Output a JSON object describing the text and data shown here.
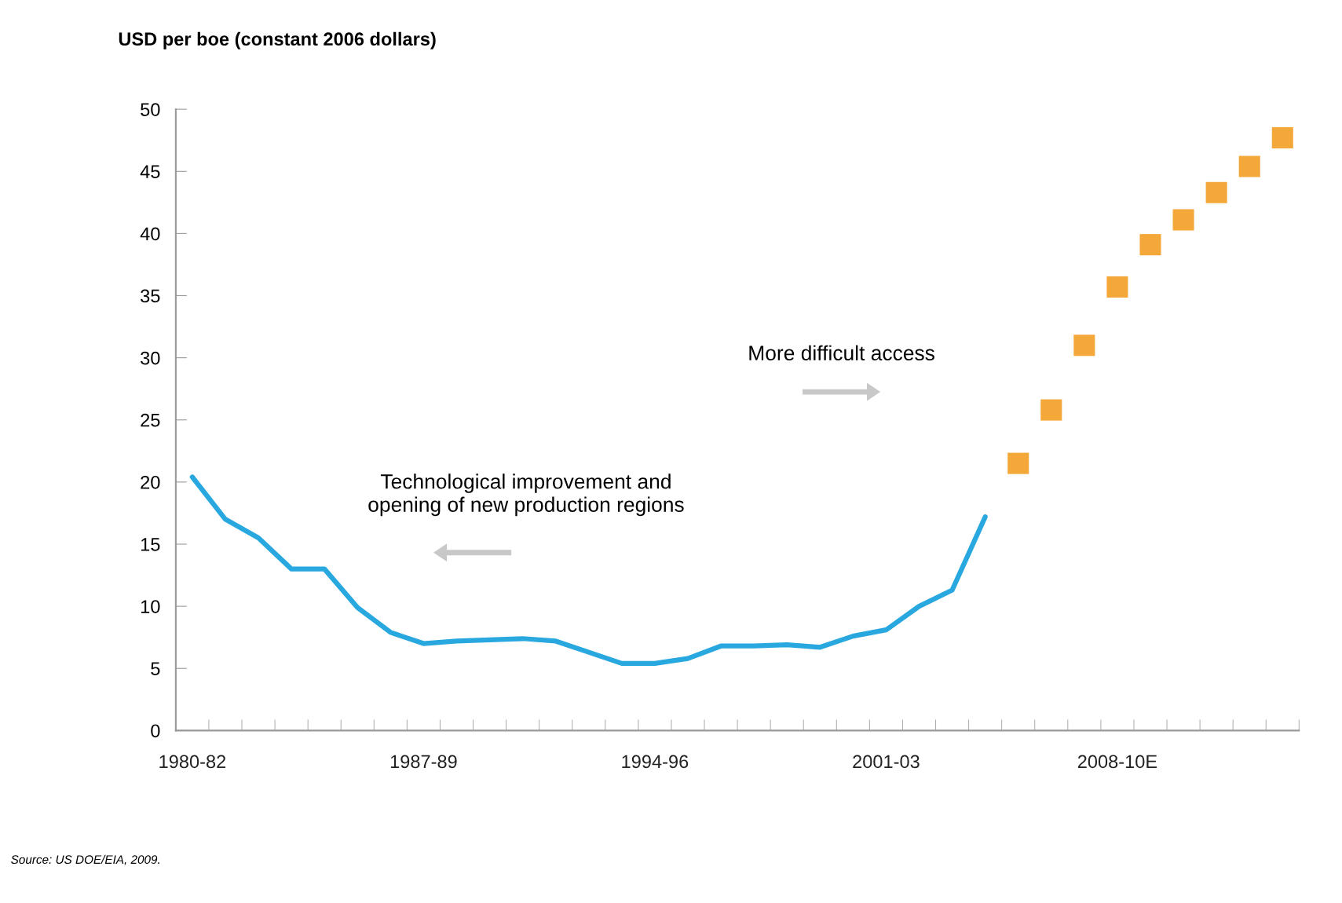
{
  "chart_data": {
    "type": "line",
    "ylabel": "USD per boe (constant 2006 dollars)",
    "categories": [
      "1980-82",
      null,
      null,
      null,
      null,
      null,
      null,
      "1987-89",
      null,
      null,
      null,
      null,
      null,
      null,
      "1994-96",
      null,
      null,
      null,
      null,
      null,
      null,
      "2001-03",
      null,
      null,
      null,
      null,
      null,
      null,
      "2008-10E",
      null,
      null,
      null,
      null,
      null
    ],
    "series": [
      {
        "color": "#29a8e0",
        "marker": "none",
        "values": [
          20.4,
          17.0,
          15.5,
          13.0,
          13.0,
          9.9,
          7.9,
          7.0,
          7.2,
          7.3,
          7.4,
          7.2,
          6.3,
          5.4,
          5.4,
          5.8,
          6.8,
          6.8,
          6.9,
          6.7,
          7.6,
          8.1,
          10.0,
          11.3,
          17.2,
          null,
          null,
          null,
          null,
          null,
          null,
          null,
          null,
          null
        ]
      },
      {
        "type": "scatter",
        "color": "#f5a83a",
        "marker": "square",
        "values": [
          null,
          null,
          null,
          null,
          null,
          null,
          null,
          null,
          null,
          null,
          null,
          null,
          null,
          null,
          null,
          null,
          null,
          null,
          null,
          null,
          null,
          null,
          null,
          null,
          null,
          21.5,
          25.8,
          31.0,
          35.7,
          39.1,
          41.1,
          43.3,
          45.4,
          47.7
        ]
      }
    ],
    "ylim": [
      0,
      50
    ],
    "yticks": [
      0,
      5,
      10,
      15,
      20,
      25,
      30,
      35,
      40,
      45,
      50
    ],
    "grid": false,
    "annotations": [
      "Technological improvement and\nopening of new production regions",
      "More difficult access",
      "Source: US DOE/EIA, 2009."
    ]
  }
}
